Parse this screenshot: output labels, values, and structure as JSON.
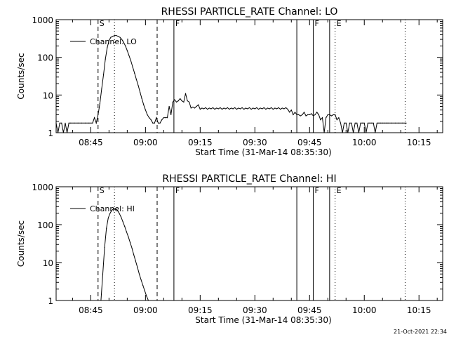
{
  "chart_data": [
    {
      "type": "line",
      "title": "RHESSI PARTICLE_RATE Channel: LO",
      "xlabel": "Start Time (31-Mar-14 08:35:30)",
      "ylabel": "Counts/sec",
      "x_tick_labels": [
        "08:45",
        "09:00",
        "09:15",
        "09:30",
        "09:45",
        "10:00",
        "10:15"
      ],
      "x_tick_minutes": [
        9.5,
        24.5,
        39.5,
        54.5,
        69.5,
        84.5,
        99.5
      ],
      "y_tick_labels": [
        "1",
        "10",
        "100",
        "1000"
      ],
      "y_log": true,
      "ylim": [
        1,
        1000
      ],
      "xlim_minutes": [
        0,
        106
      ],
      "legend": "Channel: LO",
      "legend_position": "top-left",
      "markers": [
        {
          "label": "S",
          "minute": 11.5,
          "style": "dashed"
        },
        {
          "label": "",
          "minute": 16.0,
          "style": "dotted"
        },
        {
          "label": "",
          "minute": 27.7,
          "style": "dashed"
        },
        {
          "label": "F",
          "minute": 32.3,
          "style": "solid"
        },
        {
          "label": "",
          "minute": 66.0,
          "style": "solid"
        },
        {
          "label": "F",
          "minute": 70.5,
          "style": "solid"
        },
        {
          "label": "",
          "minute": 75.0,
          "style": "solid"
        },
        {
          "label": "E",
          "minute": 76.5,
          "style": "dotted"
        },
        {
          "label": "",
          "minute": 95.7,
          "style": "dotted"
        }
      ],
      "series": [
        {
          "minutes": [
            0.0,
            0.5,
            1.0,
            1.5,
            2.0,
            2.5,
            3.0,
            3.5,
            4.0,
            5.0,
            6.0,
            7.0,
            8.0,
            9.0,
            10.0,
            10.5,
            11.0,
            11.5,
            12.0,
            12.5,
            13.0,
            13.5,
            14.0,
            14.5,
            15.0,
            15.5,
            16.0,
            16.5,
            17.0,
            17.5,
            18.0,
            18.5,
            19.0,
            19.5,
            20.0,
            20.5,
            21.0,
            21.5,
            22.0,
            22.5,
            23.0,
            23.5,
            24.0,
            24.5,
            25.0,
            25.5,
            26.0,
            26.5,
            27.0,
            27.5,
            28.0,
            28.5,
            29.0,
            29.5,
            30.0,
            30.5,
            31.0,
            31.5,
            32.0,
            32.5,
            33.0,
            33.5,
            34.0,
            34.5,
            35.0,
            35.5,
            36.0,
            36.5,
            37.0,
            37.5,
            38.0,
            38.5,
            39.0,
            39.5,
            40.0,
            40.5,
            41.0,
            41.5,
            42.0,
            42.5,
            43.0,
            43.5,
            44.0,
            44.5,
            45.0,
            45.5,
            46.0,
            46.5,
            47.0,
            47.5,
            48.0,
            48.5,
            49.0,
            49.5,
            50.0,
            50.5,
            51.0,
            51.5,
            52.0,
            52.5,
            53.0,
            53.5,
            54.0,
            54.5,
            55.0,
            55.5,
            56.0,
            56.5,
            57.0,
            57.5,
            58.0,
            58.5,
            59.0,
            59.5,
            60.0,
            60.5,
            61.0,
            61.5,
            62.0,
            62.5,
            63.0,
            63.5,
            64.0,
            64.5,
            65.0,
            65.5,
            66.0,
            66.5,
            67.0,
            67.5,
            68.0,
            68.5,
            69.0,
            69.5,
            70.0,
            70.5,
            71.0,
            71.5,
            72.0,
            72.5,
            73.0,
            73.5,
            74.0,
            74.5,
            75.0,
            75.5,
            76.0,
            76.5,
            77.0,
            77.5,
            78.0,
            78.5,
            79.0,
            79.5,
            80.0,
            80.5,
            81.0,
            81.5,
            82.0,
            82.5,
            83.0,
            83.5,
            84.0,
            84.5,
            85.0,
            85.5,
            86.0,
            86.5,
            87.0,
            87.5,
            88.0,
            88.5,
            89.0,
            89.5,
            90.0,
            90.5,
            91.0,
            92.0,
            93.0,
            94.0,
            95.0,
            96.0
          ],
          "values": [
            1.8,
            1.0,
            1.8,
            1.8,
            1.0,
            1.8,
            1.0,
            1.8,
            1.8,
            1.8,
            1.8,
            1.8,
            1.8,
            1.8,
            1.8,
            2.5,
            1.8,
            3.0,
            6.0,
            15.0,
            35.0,
            90.0,
            180.0,
            280.0,
            340.0,
            360.0,
            380.0,
            380.0,
            360.0,
            340.0,
            300.0,
            250.0,
            200.0,
            150.0,
            110.0,
            80.0,
            55.0,
            38.0,
            26.0,
            18.0,
            12.0,
            8.0,
            5.5,
            4.0,
            3.0,
            2.5,
            2.2,
            1.8,
            1.8,
            2.5,
            1.8,
            1.8,
            2.2,
            2.5,
            2.5,
            2.5,
            5.0,
            3.0,
            6.5,
            7.5,
            6.5,
            7.0,
            8.0,
            7.0,
            6.5,
            11.0,
            7.0,
            6.5,
            4.5,
            4.8,
            4.5,
            5.0,
            5.5,
            4.2,
            4.5,
            4.3,
            4.6,
            4.2,
            4.5,
            4.3,
            4.6,
            4.2,
            4.5,
            4.3,
            4.6,
            4.2,
            4.5,
            4.3,
            4.6,
            4.2,
            4.5,
            4.3,
            4.6,
            4.2,
            4.5,
            4.3,
            4.6,
            4.2,
            4.5,
            4.3,
            4.6,
            4.2,
            4.5,
            4.3,
            4.6,
            4.2,
            4.5,
            4.3,
            4.6,
            4.2,
            4.5,
            4.3,
            4.6,
            4.2,
            4.5,
            4.3,
            4.6,
            4.2,
            4.5,
            4.3,
            4.6,
            4.2,
            3.5,
            4.0,
            3.0,
            3.5,
            3.0,
            3.0,
            2.8,
            3.0,
            3.5,
            2.8,
            3.0,
            3.0,
            3.2,
            2.8,
            3.0,
            3.5,
            3.0,
            2.2,
            2.5,
            1.0,
            2.5,
            3.0,
            3.0,
            2.8,
            3.0,
            3.0,
            2.2,
            2.5,
            1.8,
            1.0,
            1.8,
            1.8,
            1.0,
            1.8,
            1.8,
            1.0,
            1.8,
            1.8,
            1.0,
            1.8,
            1.8,
            1.8,
            1.0,
            1.8,
            1.8,
            1.8,
            1.8,
            1.0,
            1.8,
            1.8,
            1.8,
            1.8,
            1.8,
            1.8,
            1.8,
            1.8,
            1.8,
            1.8,
            1.8,
            1.8
          ]
        }
      ]
    },
    {
      "type": "line",
      "title": "RHESSI PARTICLE_RATE Channel: HI",
      "xlabel": "Start Time (31-Mar-14 08:35:30)",
      "ylabel": "Counts/sec",
      "x_tick_labels": [
        "08:45",
        "09:00",
        "09:15",
        "09:30",
        "09:45",
        "10:00",
        "10:15"
      ],
      "x_tick_minutes": [
        9.5,
        24.5,
        39.5,
        54.5,
        69.5,
        84.5,
        99.5
      ],
      "y_tick_labels": [
        "1",
        "10",
        "100",
        "1000"
      ],
      "y_log": true,
      "ylim": [
        1,
        1000
      ],
      "xlim_minutes": [
        0,
        106
      ],
      "legend": "Channel: HI",
      "legend_position": "top-left",
      "markers": [
        {
          "label": "S",
          "minute": 11.5,
          "style": "dashed"
        },
        {
          "label": "",
          "minute": 16.0,
          "style": "dotted"
        },
        {
          "label": "",
          "minute": 27.7,
          "style": "dashed"
        },
        {
          "label": "F",
          "minute": 32.3,
          "style": "solid"
        },
        {
          "label": "",
          "minute": 66.0,
          "style": "solid"
        },
        {
          "label": "F",
          "minute": 70.5,
          "style": "solid"
        },
        {
          "label": "",
          "minute": 75.0,
          "style": "solid"
        },
        {
          "label": "E",
          "minute": 76.5,
          "style": "dotted"
        },
        {
          "label": "",
          "minute": 95.7,
          "style": "dotted"
        }
      ],
      "series": [
        {
          "minutes": [
            12.3,
            12.8,
            13.3,
            13.8,
            14.3,
            14.8,
            15.3,
            15.8,
            16.3,
            16.8,
            17.3,
            17.8,
            18.3,
            18.8,
            19.3,
            19.8,
            20.3,
            20.8,
            21.3,
            21.8,
            22.3,
            22.8,
            23.3,
            23.8,
            24.3,
            24.8,
            25.3
          ],
          "values": [
            1.0,
            5.0,
            25.0,
            80.0,
            150.0,
            200.0,
            240.0,
            270.0,
            260.0,
            240.0,
            200.0,
            160.0,
            120.0,
            90.0,
            65.0,
            48.0,
            34.0,
            24.0,
            16.0,
            11.0,
            7.5,
            5.0,
            3.5,
            2.5,
            1.8,
            1.3,
            1.0
          ]
        }
      ]
    }
  ],
  "timestamp": "21-Oct-2021 22:34"
}
